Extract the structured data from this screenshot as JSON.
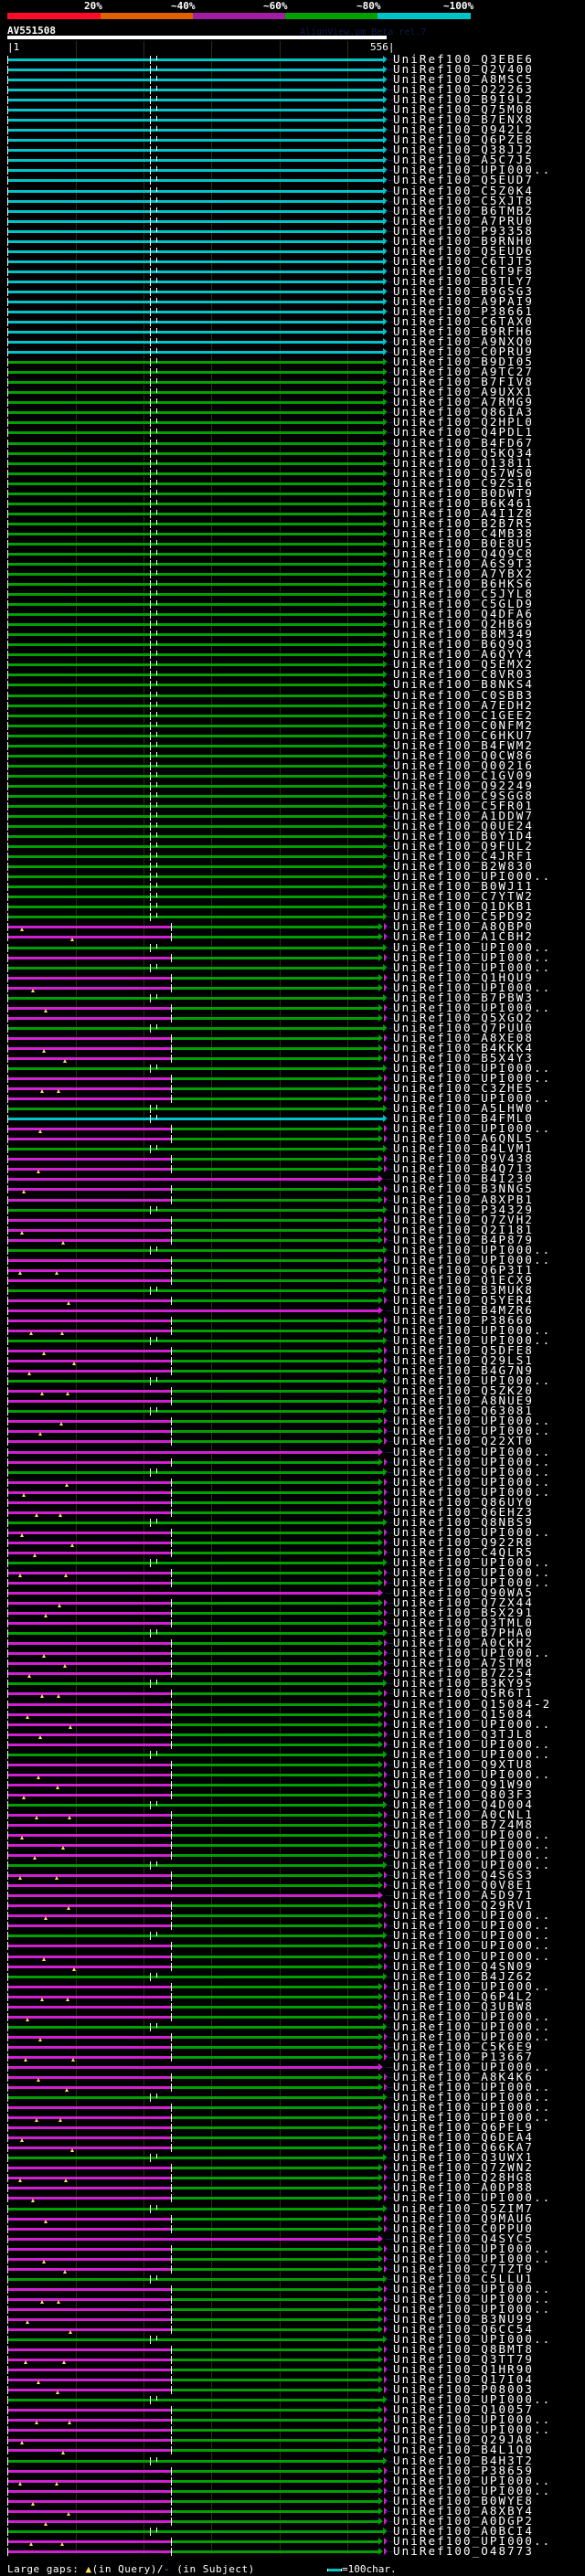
{
  "scale_labels": [
    "20%",
    "~40%",
    "~60%",
    "~80%",
    "~100%"
  ],
  "colors": {
    "red": "#ff0a28",
    "orange": "#e06000",
    "purple": "#a21ea0",
    "green": "#00a000",
    "cyan": "#00c4c8",
    "magenta": "#d020d0"
  },
  "query": {
    "name": "AV551508",
    "start": "|1",
    "end": "556|",
    "length": 556
  },
  "credit": "AlignView.pm Beta rel.7",
  "legend": {
    "prefix": "Large gaps: ",
    "query_symbol": "▲",
    "query_text": "(in Query)/",
    "subject_symbol": "-",
    "subject_text": " (in Subject)",
    "scale_text": "=100char."
  },
  "tiers": [
    "cccccccccc",
    "cccccccccc",
    "cccccccccc",
    "gggggggggg",
    "gggggggggg",
    "gggggggggg",
    "gggggggggg",
    "gggggggggg",
    "gggggg",
    "mmgmgmmgmm",
    "gmmmgmmmgc",
    "mmgmmpmmgm",
    "mmgmmmgmpm",
    "mgmmmgmmgm",
    "mmpmgmmmmg",
    "mmmgmmpmmm",
    "gmmmmgmmmm",
    "mmgmmmmgmm",
    "mmmgmmpmmm",
    "gmmmgmmmmg",
    "mmmpmmgmmm",
    "mmgmmmmgmm",
    "pmmmgmmmmm",
    "gmmmmmgmmm",
    "mmgmmmmmmg",
    "mm"
  ],
  "rows": [
    "UniRef100_Q3EBE6",
    "UniRef100_Q2V400",
    "UniRef100_A8MSC5",
    "UniRef100_O22263",
    "UniRef100_B9I9L2",
    "UniRef100_Q75M08",
    "UniRef100_B7ENX8",
    "UniRef100_Q942L2",
    "UniRef100_Q6PZE8",
    "UniRef100_Q38JJ2",
    "UniRef100_A5C7J5",
    "UniRef100_UPI000..",
    "UniRef100_Q5EUD7",
    "UniRef100_C5Z0K4",
    "UniRef100_C5XJT8",
    "UniRef100_B6TMB2",
    "UniRef100_A7PRU0",
    "UniRef100_P93358",
    "UniRef100_B9RNH0",
    "UniRef100_Q5EUD6",
    "UniRef100_C6TJT5",
    "UniRef100_C6T9F8",
    "UniRef100_B3TLY7",
    "UniRef100_B9GSG3",
    "UniRef100_A9PAI9",
    "UniRef100_P38661",
    "UniRef100_C6TAX0",
    "UniRef100_B9RFH6",
    "UniRef100_A9NXQ0",
    "UniRef100_C0PRU9",
    "UniRef100_B9DI05",
    "UniRef100_A9TC27",
    "UniRef100_B7FIV8",
    "UniRef100_A9UXX1",
    "UniRef100_A7RMG9",
    "UniRef100_Q86IA3",
    "UniRef100_Q2HPL0",
    "UniRef100_Q4PDL1",
    "UniRef100_B4FD67",
    "UniRef100_Q5KQ34",
    "UniRef100_O13811",
    "UniRef100_Q57WS0",
    "UniRef100_C9ZS16",
    "UniRef100_B0DWT9",
    "UniRef100_B6K461",
    "UniRef100_A4I1Z8",
    "UniRef100_B2B7R5",
    "UniRef100_C4MB38",
    "UniRef100_B0E8U5",
    "UniRef100_Q4Q9C8",
    "UniRef100_A6S9T3",
    "UniRef100_A7YBX2",
    "UniRef100_B6HKS6",
    "UniRef100_C5JYL8",
    "UniRef100_C5GLD9",
    "UniRef100_Q4DFA6",
    "UniRef100_Q2HB69",
    "UniRef100_B8M349",
    "UniRef100_B6Q9Q3",
    "UniRef100_A6QYY4",
    "UniRef100_Q5EMX2",
    "UniRef100_C8VR03",
    "UniRef100_B8NKS4",
    "UniRef100_C0SBB3",
    "UniRef100_A7EDH2",
    "UniRef100_C1GEE2",
    "UniRef100_C0NFM2",
    "UniRef100_C6HKU7",
    "UniRef100_B4FWM2",
    "UniRef100_Q0CW86",
    "UniRef100_Q00216",
    "UniRef100_C1GV09",
    "UniRef100_Q92249",
    "UniRef100_C9SGG8",
    "UniRef100_C5FR01",
    "UniRef100_A1DDW7",
    "UniRef100_Q0UE24",
    "UniRef100_B0Y1D4",
    "UniRef100_Q9FUL2",
    "UniRef100_C4JRF1",
    "UniRef100_B2W830",
    "UniRef100_UPI000..",
    "UniRef100_B0WJ11",
    "UniRef100_C7YTW2",
    "UniRef100_Q1DKB1",
    "UniRef100_C5PD92",
    "UniRef100_A8QBP0",
    "UniRef100_A1CBH2",
    "UniRef100_UPI000..",
    "UniRef100_UPI000..",
    "UniRef100_UPI000..",
    "UniRef100_Q1HQU9",
    "UniRef100_UPI000..",
    "UniRef100_B7PBW3",
    "UniRef100_UPI000..",
    "UniRef100_Q5XGQ2",
    "UniRef100_Q7PUU0",
    "UniRef100_A8XE08",
    "UniRef100_B4KKK4",
    "UniRef100_B5X4Y3",
    "UniRef100_UPI000..",
    "UniRef100_UPI000..",
    "UniRef100_C3ZHE5",
    "UniRef100_UPI000..",
    "UniRef100_A5LHW0",
    "UniRef100_B4FML0",
    "UniRef100_UPI000..",
    "UniRef100_A6QNL5",
    "UniRef100_B4LVM1",
    "UniRef100_Q9V438",
    "UniRef100_B4Q713",
    "UniRef100_B4I230",
    "UniRef100_B3NNG5",
    "UniRef100_A8XPB1",
    "UniRef100_P34329",
    "UniRef100_Q7ZVH2",
    "UniRef100_Q2I181",
    "UniRef100_B4P879",
    "UniRef100_UPI000..",
    "UniRef100_UPI000..",
    "UniRef100_Q6P3I1",
    "UniRef100_Q1ECX9",
    "UniRef100_B3MUK8",
    "UniRef100_Q5YER4",
    "UniRef100_B4MZR6",
    "UniRef100_P38660",
    "UniRef100_UPI000..",
    "UniRef100_UPI000..",
    "UniRef100_Q5DFE8",
    "UniRef100_Q29LS1",
    "UniRef100_B4G7N9",
    "UniRef100_UPI000..",
    "UniRef100_Q5ZK20",
    "UniRef100_A8NUE9",
    "UniRef100_Q63081",
    "UniRef100_UPI000..",
    "UniRef100_UPI000..",
    "UniRef100_Q22XT0",
    "UniRef100_UPI000..",
    "UniRef100_UPI000..",
    "UniRef100_UPI000..",
    "UniRef100_UPI000..",
    "UniRef100_UPI000..",
    "UniRef100_Q86UY0",
    "UniRef100_Q6EHZ3",
    "UniRef100_Q8NBS9",
    "UniRef100_UPI000..",
    "UniRef100_Q922R8",
    "UniRef100_C4QLR5",
    "UniRef100_UPI000..",
    "UniRef100_UPI000..",
    "UniRef100_UPI000..",
    "UniRef100_Q90WA5",
    "UniRef100_Q7ZX44",
    "UniRef100_B5X291",
    "UniRef100_Q3TML0",
    "UniRef100_B7PHA0",
    "UniRef100_A0CKH2",
    "UniRef100_UPI000..",
    "UniRef100_A7STM8",
    "UniRef100_B7Z254",
    "UniRef100_B3KY95",
    "UniRef100_Q5R6T1",
    "UniRef100_Q15084-2",
    "UniRef100_Q15084",
    "UniRef100_UPI000..",
    "UniRef100_Q3TJL8",
    "UniRef100_UPI000..",
    "UniRef100_UPI000..",
    "UniRef100_Q9XTU8",
    "UniRef100_UPI000..",
    "UniRef100_Q91W90",
    "UniRef100_Q803F3",
    "UniRef100_Q4D004",
    "UniRef100_A0CNL1",
    "UniRef100_B7Z4M8",
    "UniRef100_UPI000..",
    "UniRef100_UPI000..",
    "UniRef100_UPI000..",
    "UniRef100_UPI000..",
    "UniRef100_Q4S6S3",
    "UniRef100_Q0V8E1",
    "UniRef100_A5D971",
    "UniRef100_Q29RV1",
    "UniRef100_UPI000..",
    "UniRef100_UPI000..",
    "UniRef100_UPI000..",
    "UniRef100_UPI000..",
    "UniRef100_UPI000..",
    "UniRef100_Q4SN09",
    "UniRef100_B4JZ62",
    "UniRef100_UPI000..",
    "UniRef100_Q6P4L2",
    "UniRef100_Q3UBW8",
    "UniRef100_UPI000..",
    "UniRef100_UPI000..",
    "UniRef100_UPI000..",
    "UniRef100_C5K6E9",
    "UniRef100_P13667",
    "UniRef100_UPI000..",
    "UniRef100_A8K4K6",
    "UniRef100_UPI000..",
    "UniRef100_UPI000..",
    "UniRef100_UPI000..",
    "UniRef100_UPI000..",
    "UniRef100_Q6PFL9",
    "UniRef100_Q6DEA4",
    "UniRef100_Q66KA7",
    "UniRef100_Q3UWX1",
    "UniRef100_Q7ZWN2",
    "UniRef100_Q28HG8",
    "UniRef100_A0DP88",
    "UniRef100_UPI000..",
    "UniRef100_Q5ZIM7",
    "UniRef100_Q9MAU6",
    "UniRef100_C0PPU0",
    "UniRef100_Q4SYC5",
    "UniRef100_UPI000..",
    "UniRef100_UPI000..",
    "UniRef100_C7TZT9",
    "UniRef100_C5LLU1",
    "UniRef100_UPI000..",
    "UniRef100_UPI000..",
    "UniRef100_UPI000..",
    "UniRef100_B3NU99",
    "UniRef100_Q6CC54",
    "UniRef100_UPI000..",
    "UniRef100_Q8BMT8",
    "UniRef100_Q3TT79",
    "UniRef100_Q1HR90",
    "UniRef100_Q17I04",
    "UniRef100_P08003",
    "UniRef100_UPI000..",
    "UniRef100_Q10057",
    "UniRef100_UPI000..",
    "UniRef100_UPI000..",
    "UniRef100_Q29JA8",
    "UniRef100_B4L1Q0",
    "UniRef100_B4H3T2",
    "UniRef100_P38659",
    "UniRef100_UPI000..",
    "UniRef100_UPI000..",
    "UniRef100_B0WYE8",
    "UniRef100_A8XBY4",
    "UniRef100_A0DGP2",
    "UniRef100_A0BCI4",
    "UniRef100_UPI000..",
    "UniRef100_O48773"
  ]
}
